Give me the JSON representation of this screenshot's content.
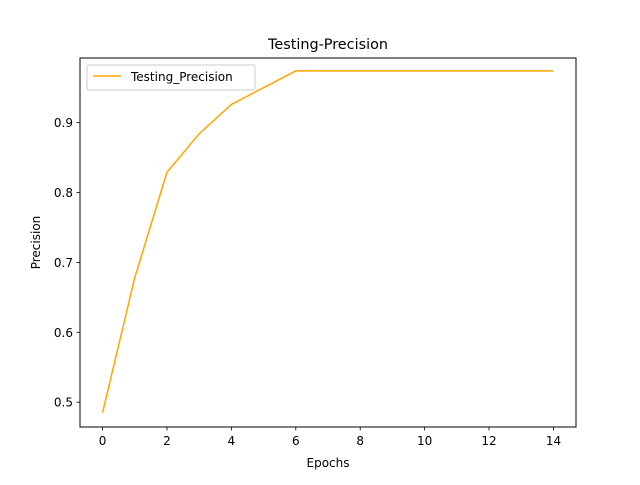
{
  "chart_data": {
    "type": "line",
    "title": "Testing-Precision",
    "xlabel": "Epochs",
    "ylabel": "Precision",
    "xlim": [
      -0.7,
      14.7
    ],
    "ylim": [
      0.4645,
      0.9925
    ],
    "x_ticks": [
      0,
      2,
      4,
      6,
      8,
      10,
      12,
      14
    ],
    "y_ticks": [
      0.5,
      0.6,
      0.7,
      0.8,
      0.9
    ],
    "grid": false,
    "legend": {
      "placement": "upper left"
    },
    "series": [
      {
        "name": "Testing_Precision",
        "color": "#FFA500",
        "x": [
          0,
          1,
          2,
          3,
          4,
          5,
          6,
          7,
          8,
          9,
          10,
          11,
          12,
          13,
          14
        ],
        "y": [
          0.485,
          0.678,
          0.829,
          0.884,
          0.926,
          0.95,
          0.974,
          0.974,
          0.974,
          0.974,
          0.974,
          0.974,
          0.974,
          0.974,
          0.974
        ]
      }
    ]
  }
}
